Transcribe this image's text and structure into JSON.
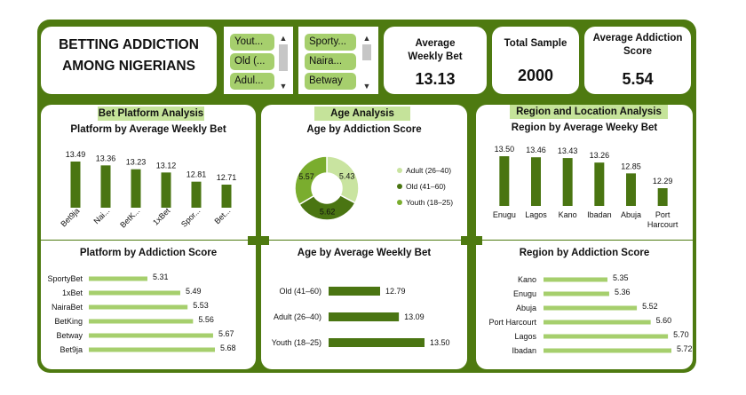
{
  "title": {
    "line1": "BETTING ADDICTION",
    "line2": "AMONG NIGERIANS"
  },
  "colors": {
    "dark_green": "#4e7a10",
    "bar_dark": "#4a7512",
    "bar_light": "#a6cf6d",
    "donut_light": "#c9e4a0",
    "donut_mid": "#7aad2e",
    "tag_bg": "#c5e39a"
  },
  "slicers": [
    {
      "items": [
        "Yout...",
        "Old (...",
        "Adul..."
      ]
    },
    {
      "items": [
        "Sporty...",
        "Naira...",
        "Betway"
      ]
    }
  ],
  "kpis": [
    {
      "label": "Average Weekly Bet",
      "value": "13.13"
    },
    {
      "label": "Total Sample",
      "value": "2000"
    },
    {
      "label": "Average Addiction Score",
      "value": "5.54"
    }
  ],
  "sections": {
    "platform": "Bet Platform Analysis",
    "age": "Age Analysis",
    "region": "Region and Location Analysis"
  },
  "chart_data": [
    {
      "type": "bar",
      "title": "Platform by Average Weekly Bet",
      "categories": [
        "Bet9ja",
        "Nai...",
        "BetK...",
        "1xBet",
        "Spor...",
        "Bet..."
      ],
      "values": [
        13.49,
        13.36,
        13.23,
        13.12,
        12.81,
        12.71
      ],
      "value_labels": [
        "13.49",
        "13.36",
        "13.23",
        "13.12",
        "12.81",
        "12.71"
      ]
    },
    {
      "type": "pie",
      "title": "Age by  Addiction Score",
      "categories": [
        "Adult (26–40)",
        "Old (41–60)",
        "Youth (18–25)"
      ],
      "values": [
        5.43,
        5.62,
        5.57
      ],
      "value_labels": [
        "5.43",
        "5.62",
        "5.57"
      ],
      "legend": "right"
    },
    {
      "type": "bar",
      "title": "Region by Average Weeky Bet",
      "categories": [
        "Enugu",
        "Lagos",
        "Kano",
        "Ibadan",
        "Abuja",
        "Port Harcourt"
      ],
      "category_lines": [
        [
          "Enugu"
        ],
        [
          "Lagos"
        ],
        [
          "Kano"
        ],
        [
          "Ibadan"
        ],
        [
          "Abuja"
        ],
        [
          "Port",
          "Harcourt"
        ]
      ],
      "values": [
        13.5,
        13.46,
        13.43,
        13.26,
        12.85,
        12.29
      ],
      "value_labels": [
        "13.50",
        "13.46",
        "13.43",
        "13.26",
        "12.85",
        "12.29"
      ]
    },
    {
      "type": "bar",
      "orientation": "horizontal",
      "title": "Platform by Addiction Score",
      "categories": [
        "SportyBet",
        "1xBet",
        "NairaBet",
        "BetKing",
        "Betway",
        "Bet9ja"
      ],
      "values": [
        5.31,
        5.49,
        5.53,
        5.56,
        5.67,
        5.68
      ],
      "value_labels": [
        "5.31",
        "5.49",
        "5.53",
        "5.56",
        "5.67",
        "5.68"
      ]
    },
    {
      "type": "bar",
      "orientation": "horizontal",
      "title": "Age by Average Weekly Bet",
      "categories": [
        "Old (41–60)",
        "Adult (26–40)",
        "Youth (18–25)"
      ],
      "values": [
        12.79,
        13.09,
        13.5
      ],
      "value_labels": [
        "12.79",
        "13.09",
        "13.50"
      ]
    },
    {
      "type": "bar",
      "orientation": "horizontal",
      "title": "Region by Addiction Score",
      "categories": [
        "Kano",
        "Enugu",
        "Abuja",
        "Port Harcourt",
        "Lagos",
        "Ibadan"
      ],
      "values": [
        5.35,
        5.36,
        5.52,
        5.6,
        5.7,
        5.72
      ],
      "value_labels": [
        "5.35",
        "5.36",
        "5.52",
        "5.60",
        "5.70",
        "5.72"
      ]
    }
  ]
}
